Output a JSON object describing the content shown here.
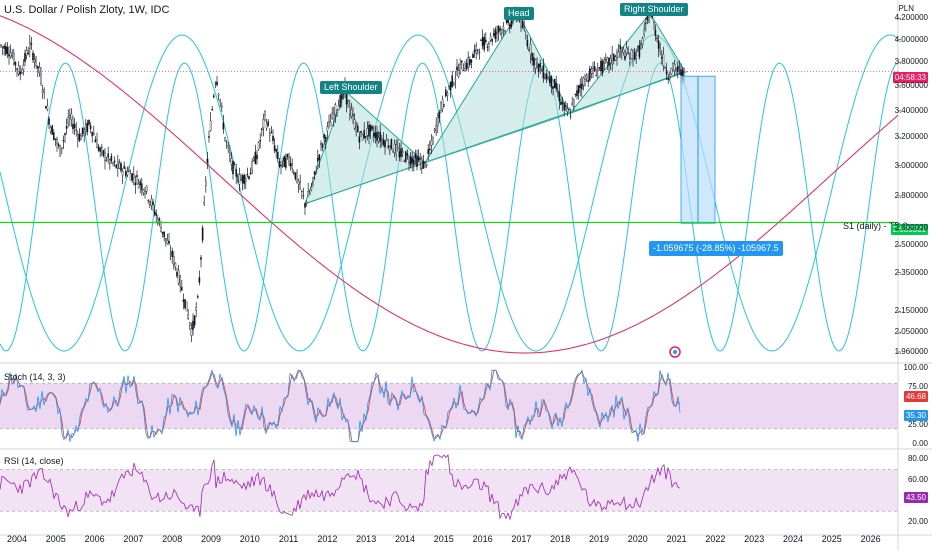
{
  "symbol_title": "U.S. Dollar / Polish Zloty, 1W, IDC",
  "panes": {
    "stoch_title": "Stoch (14, 3, 3)",
    "rsi_title": "RSI (14, close)"
  },
  "price_axis": {
    "unit": "PLN",
    "ticks": [
      "4.200000",
      "4.000000",
      "3.800000",
      "3.600000",
      "3.400000",
      "3.200000",
      "3.000000",
      "2.800000",
      "2.600000",
      "2.500000",
      "2.350000",
      "2.150000",
      "2.050000",
      "1.960000"
    ],
    "current_price": "3.7",
    "current_price_badge": "04:58:33",
    "s1_badge": "2.635331"
  },
  "stoch_axis": {
    "ticks": [
      "100.00",
      "75.00",
      "25.00",
      "0.00"
    ],
    "value_k": "46.68",
    "value_d": "35.30"
  },
  "rsi_axis": {
    "ticks": [
      "80.00",
      "60.00",
      "20.00"
    ],
    "value": "43.50"
  },
  "time_axis": {
    "years": [
      "2004",
      "2005",
      "2006",
      "2007",
      "2008",
      "2009",
      "2010",
      "2011",
      "2012",
      "2013",
      "2014",
      "2015",
      "2016",
      "2017",
      "2018",
      "2019",
      "2020",
      "2021",
      "2022",
      "2023",
      "2024",
      "2025",
      "2026"
    ]
  },
  "annotations": {
    "left_shoulder": "Left Shoulder",
    "head": "Head",
    "right_shoulder": "Right Shoulder",
    "s1_line": "S1 (daily) - TP 2",
    "measure": "-1.059675 (-28.85%) -105967.5"
  },
  "colors": {
    "candle": "#131722",
    "cycle_cyan": "#26c6da",
    "cycle_red": "#e91e63",
    "s1_green": "#00e600",
    "pattern_fill": "#b2dfdb",
    "pattern_line": "#26a69a",
    "stoch_fill": "#e1bee7",
    "stoch_k": "#2196f3",
    "stoch_d": "#e53935",
    "rsi_line": "#9c27b0",
    "measure_fill": "#bbdefb",
    "measure_line": "#2196f3",
    "price_badge": "#e91e63",
    "s1_badge_bg": "#00e600"
  }
}
